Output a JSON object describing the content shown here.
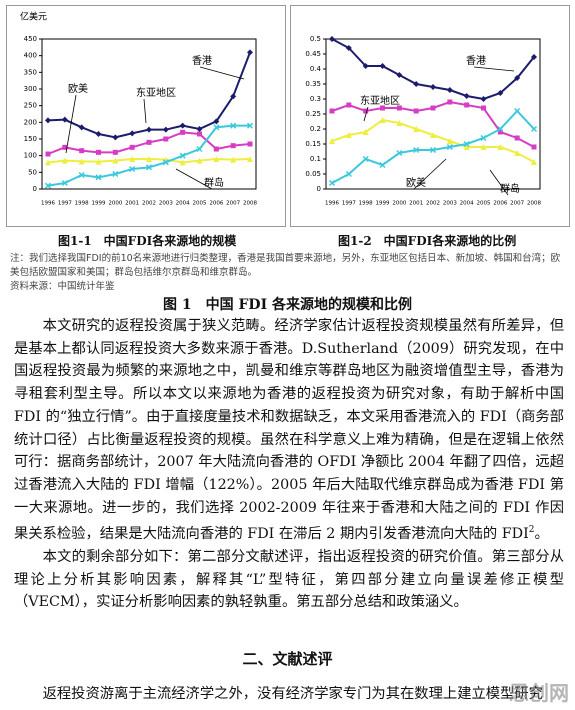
{
  "chart_data": [
    {
      "type": "line",
      "unit_label": "亿美元",
      "categories": [
        "1996",
        "1997",
        "1998",
        "1999",
        "2000",
        "2001",
        "2002",
        "2003",
        "2004",
        "2005",
        "2006",
        "2007",
        "2008"
      ],
      "ylim": [
        0,
        450
      ],
      "yticks": [
        0,
        50,
        100,
        150,
        200,
        250,
        300,
        350,
        400,
        450
      ],
      "series": [
        {
          "name": "香港",
          "color": "#1c1c6b",
          "marker": "diamond",
          "values": [
            206,
            208,
            185,
            165,
            155,
            167,
            178,
            178,
            190,
            180,
            203,
            278,
            410
          ]
        },
        {
          "name": "欧美",
          "color": "#d63cc4",
          "marker": "square",
          "values": [
            105,
            125,
            115,
            110,
            110,
            125,
            140,
            150,
            170,
            165,
            120,
            130,
            135
          ]
        },
        {
          "name": "东亚地区",
          "color": "#eeee40",
          "marker": "triangle",
          "values": [
            80,
            85,
            83,
            82,
            85,
            90,
            90,
            88,
            80,
            85,
            90,
            88,
            90
          ]
        },
        {
          "name": "群岛",
          "color": "#3cc8dc",
          "marker": "x",
          "values": [
            10,
            18,
            42,
            35,
            45,
            60,
            65,
            80,
            100,
            120,
            185,
            190,
            190
          ]
        }
      ]
    },
    {
      "type": "line",
      "categories": [
        "1996",
        "1997",
        "1998",
        "1999",
        "2000",
        "2001",
        "2002",
        "2003",
        "2004",
        "2005",
        "2006",
        "2007",
        "2008"
      ],
      "ylim": [
        0,
        0.5
      ],
      "yticks": [
        0,
        0.05,
        0.1,
        0.15,
        0.2,
        0.25,
        0.3,
        0.35,
        0.4,
        0.45,
        0.5
      ],
      "series": [
        {
          "name": "香港",
          "color": "#1c1c6b",
          "marker": "diamond",
          "values": [
            0.5,
            0.47,
            0.41,
            0.41,
            0.38,
            0.35,
            0.34,
            0.33,
            0.31,
            0.3,
            0.32,
            0.37,
            0.44
          ]
        },
        {
          "name": "欧美",
          "color": "#d63cc4",
          "marker": "square",
          "values": [
            0.26,
            0.28,
            0.26,
            0.27,
            0.27,
            0.26,
            0.27,
            0.29,
            0.28,
            0.27,
            0.19,
            0.17,
            0.14
          ]
        },
        {
          "name": "东亚地区",
          "color": "#eeee40",
          "marker": "triangle",
          "values": [
            0.16,
            0.18,
            0.19,
            0.23,
            0.22,
            0.2,
            0.18,
            0.16,
            0.14,
            0.14,
            0.14,
            0.12,
            0.09
          ]
        },
        {
          "name": "群岛",
          "color": "#3cc8dc",
          "marker": "x",
          "values": [
            0.02,
            0.05,
            0.1,
            0.08,
            0.12,
            0.13,
            0.13,
            0.14,
            0.15,
            0.17,
            0.2,
            0.26,
            0.2
          ]
        }
      ]
    }
  ],
  "figure": {
    "captions": [
      "图1-1　中国FDI各来源地的规模",
      "图1-2　中国FDI各来源地的比例"
    ],
    "note": "注：我们选择我国FDI的前10名来源地进行归类整理，香港是我国首要来源地，另外，东亚地区包括日本、新加坡、韩国和台湾；欧美包括欧盟国家和美国；群岛包括维尔京群岛和维京群岛。",
    "source": "资料来源：中国统计年鉴",
    "title": "图 1　中国 FDI 各来源地的规模和比例"
  },
  "body": {
    "paragraphs": [
      "本文研究的返程投资属于狭义范畴。经济学家估计返程投资规模虽然有所差异，但是基本上都认同返程投资大多数来源于香港。D.Sutherland（2009）研究发现，在中国返程投资最为频繁的来源地之中，凯曼和维京等群岛地区为融资增值型主导，香港为寻租套利型主导。所以本文以来源地为香港的返程投资为研究对象，有助于解析中国 FDI 的“独立行情”。由于直接度量技术和数据缺乏，本文采用香港流入的 FDI（商务部统计口径）占比衡量返程投资的规模。虽然在科学意义上难为精确，但是在逻辑上依然可行：据商务部统计，2007 年大陆流向香港的 OFDI 净额比 2004 年翻了四倍，远超过香港流入大陆的 FDI 增幅（122%）。2005 年后大陆取代维京群岛成为香港 FDI 第一大来源地。进一步的，我们选择 2002-2009 年往来于香港和大陆之间的 FDI 作因果关系检验，结果是大陆流向香港的 FDI 在滞后 2 期内引发香港流向大陆的 FDI",
      "本文的剩余部分如下：第二部分文献述评，指出返程投资的研究价值。第三部分从理论上分析其影响因素，解释其“L”型特征，第四部分建立向量误差修正模型（VECM），实证分析影响因素的孰轻孰重。第五部分总结和政策涵义。"
    ],
    "footnote_mark": "2",
    "heading": "二、文献述评",
    "last_line": "返程投资游离于主流经济学之外，没有经济学家专门为其在数理上建立模型研究"
  },
  "watermark": "思创网"
}
